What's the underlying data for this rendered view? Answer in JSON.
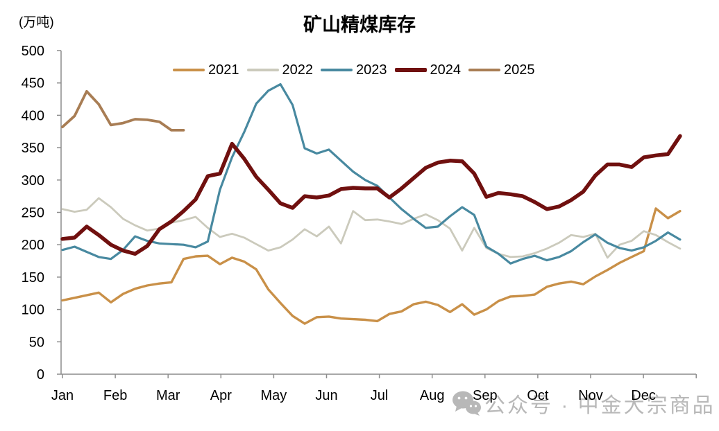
{
  "unit_label": "(万吨)",
  "title": "矿山精煤库存",
  "watermark": {
    "icon": "wechat-icon",
    "text": "公众号 · 中金大宗商品"
  },
  "chart_data": {
    "type": "line",
    "title": "矿山精煤库存",
    "ylabel": "万吨",
    "ylim": [
      0,
      500
    ],
    "y_ticks": [
      0,
      50,
      100,
      150,
      200,
      250,
      300,
      350,
      400,
      450,
      500
    ],
    "x_tick_labels": [
      "Jan",
      "Feb",
      "Mar",
      "Apr",
      "May",
      "Jun",
      "Jul",
      "Aug",
      "Sep",
      "Oct",
      "Nov",
      "Dec"
    ],
    "grid": false,
    "legend_position": "top",
    "axis_color": "#8c8c8c",
    "label_color": "#000000",
    "watermark_color": "#b8b8b8",
    "series": [
      {
        "name": "2021",
        "color": "#C99048",
        "width": 3.4,
        "values": [
          114,
          118,
          122,
          126,
          111,
          124,
          132,
          137,
          140,
          142,
          178,
          182,
          183,
          170,
          180,
          174,
          162,
          131,
          110,
          90,
          78,
          88,
          89,
          86,
          85,
          84,
          82,
          93,
          97,
          108,
          112,
          107,
          96,
          108,
          92,
          100,
          113,
          120,
          121,
          123,
          135,
          140,
          143,
          139,
          151,
          161,
          172,
          181,
          190,
          256,
          241,
          252
        ]
      },
      {
        "name": "2022",
        "color": "#CBCABC",
        "width": 2.8,
        "values": [
          255,
          251,
          254,
          272,
          258,
          240,
          230,
          222,
          225,
          234,
          238,
          243,
          226,
          212,
          217,
          211,
          201,
          191,
          196,
          208,
          224,
          213,
          228,
          202,
          252,
          238,
          239,
          236,
          232,
          240,
          247,
          238,
          225,
          191,
          226,
          195,
          186,
          181,
          182,
          187,
          194,
          203,
          215,
          212,
          217,
          180,
          200,
          206,
          221,
          215,
          204,
          194
        ]
      },
      {
        "name": "2023",
        "color": "#4889A0",
        "width": 3.2,
        "values": [
          192,
          197,
          189,
          181,
          178,
          192,
          213,
          206,
          202,
          201,
          200,
          196,
          205,
          285,
          335,
          374,
          418,
          438,
          448,
          416,
          349,
          341,
          347,
          330,
          313,
          300,
          291,
          273,
          255,
          240,
          226,
          228,
          244,
          258,
          246,
          197,
          186,
          171,
          178,
          183,
          176,
          181,
          190,
          204,
          216,
          203,
          195,
          191,
          196,
          206,
          219,
          208
        ]
      },
      {
        "name": "2024",
        "color": "#70100F",
        "width": 5.5,
        "values": [
          209,
          211,
          228,
          215,
          200,
          191,
          186,
          198,
          224,
          236,
          252,
          270,
          306,
          310,
          356,
          333,
          305,
          285,
          264,
          257,
          275,
          273,
          276,
          286,
          288,
          287,
          287,
          273,
          287,
          303,
          319,
          327,
          330,
          329,
          310,
          274,
          280,
          278,
          275,
          266,
          255,
          259,
          269,
          282,
          307,
          324,
          324,
          320,
          335,
          338,
          340,
          368
        ]
      },
      {
        "name": "2025",
        "color": "#A87D54",
        "width": 3.8,
        "values": [
          382,
          399,
          437,
          417,
          385,
          388,
          394,
          393,
          390,
          377,
          377
        ]
      }
    ]
  }
}
